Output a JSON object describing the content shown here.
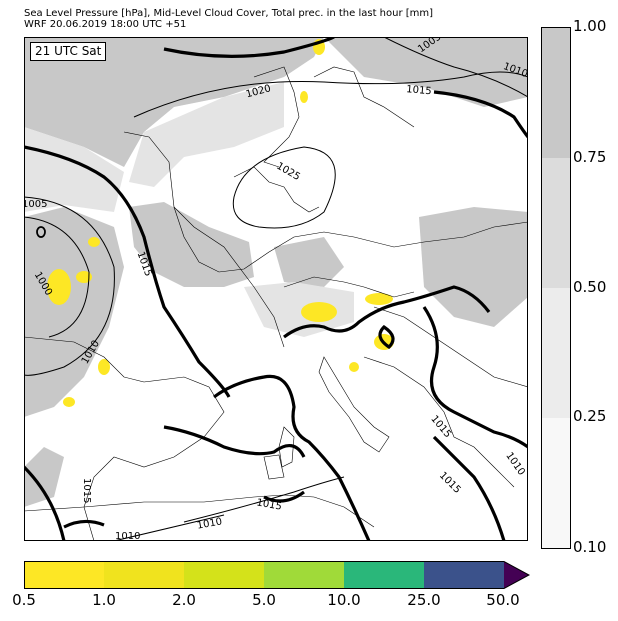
{
  "header": {
    "line1": "Sea Level Pressure [hPa], Mid-Level Cloud Cover, Total prec. in the last hour [mm]",
    "line2": "WRF 20.06.2019 18:00 UTC +51"
  },
  "time_label": "21 UTC Sat",
  "isobar_labels": [
    "1005",
    "1010",
    "1015",
    "1020",
    "1025",
    "1000",
    "1005",
    "1010",
    "1015",
    "1015",
    "1015",
    "1010",
    "1015",
    "1015",
    "1010",
    "1010",
    "1010"
  ],
  "cloud_colorbar": {
    "ticks": [
      "1.00",
      "0.75",
      "0.50",
      "0.25",
      "0.10"
    ],
    "colors": [
      "#c8c8c8",
      "#dcdcdc",
      "#ececec",
      "#f8f8f8"
    ]
  },
  "precip_colorbar": {
    "ticks": [
      "0.5",
      "1.0",
      "2.0",
      "5.0",
      "10.0",
      "25.0",
      "50.0"
    ],
    "colors": [
      "#fde725",
      "#f0e31e",
      "#d4e21a",
      "#a0da39",
      "#2ab77a",
      "#3b528b",
      "#440154"
    ]
  }
}
